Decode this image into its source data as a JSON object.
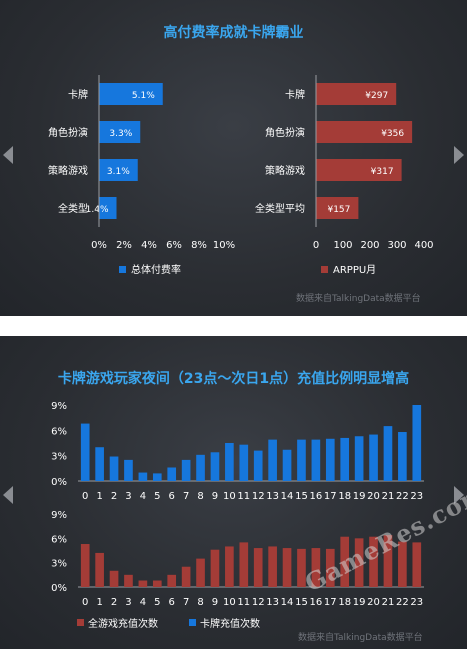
{
  "top_panel": {
    "title": "高付费率成就卡牌霸业",
    "source": "数据来自TalkingData数据平台"
  },
  "bottom_panel": {
    "title": "卡牌游戏玩家夜间（23点～次日1点）充值比例明显增高",
    "source": "数据来自TalkingData数据平台"
  },
  "site_watermark": "GameRes.com",
  "colors": {
    "blue": "#1677dd",
    "red": "#a43c37",
    "title": "#3aa6ee",
    "text": "#ffffff"
  },
  "chart_data": [
    {
      "type": "bar",
      "orientation": "horizontal",
      "categories": [
        "卡牌",
        "角色扮演",
        "策略游戏",
        "全类型"
      ],
      "values": [
        5.1,
        3.3,
        3.1,
        1.4
      ],
      "value_labels": [
        "5.1%",
        "3.3%",
        "3.1%",
        "1.4%"
      ],
      "xlim": [
        0,
        10
      ],
      "ticks": [
        "0%",
        "2%",
        "4%",
        "6%",
        "8%",
        "10%"
      ],
      "legend": "总体付费率",
      "color": "#1677dd"
    },
    {
      "type": "bar",
      "orientation": "horizontal",
      "categories": [
        "卡牌",
        "角色扮演",
        "策略游戏",
        "全类型平均"
      ],
      "values": [
        297,
        356,
        317,
        157
      ],
      "value_labels": [
        "¥297",
        "¥356",
        "¥317",
        "¥157"
      ],
      "xlim": [
        0,
        400
      ],
      "ticks": [
        "0",
        "100",
        "200",
        "300",
        "400"
      ],
      "legend": "ARPPU月",
      "color": "#a43c37"
    },
    {
      "type": "bar",
      "categories": [
        "0",
        "1",
        "2",
        "3",
        "4",
        "5",
        "6",
        "7",
        "8",
        "9",
        "10",
        "11",
        "12",
        "13",
        "14",
        "15",
        "16",
        "17",
        "18",
        "19",
        "20",
        "21",
        "22",
        "23"
      ],
      "values": [
        6.8,
        4.0,
        2.9,
        2.5,
        1.0,
        0.9,
        1.6,
        2.5,
        3.1,
        3.4,
        4.5,
        4.3,
        3.6,
        4.9,
        3.7,
        4.9,
        4.9,
        5.0,
        5.1,
        5.3,
        5.5,
        6.5,
        5.8,
        9.0
      ],
      "ylim": [
        0,
        9
      ],
      "yticks": [
        "0%",
        "3%",
        "6%",
        "9%"
      ],
      "series_name": "卡牌充值次数",
      "color": "#1677dd"
    },
    {
      "type": "bar",
      "categories": [
        "0",
        "1",
        "2",
        "3",
        "4",
        "5",
        "6",
        "7",
        "8",
        "9",
        "10",
        "11",
        "12",
        "13",
        "14",
        "15",
        "16",
        "17",
        "18",
        "19",
        "20",
        "21",
        "22",
        "23"
      ],
      "values": [
        5.3,
        4.2,
        2.0,
        1.5,
        0.8,
        0.8,
        1.5,
        2.5,
        3.5,
        4.6,
        5.0,
        5.5,
        4.8,
        5.0,
        4.8,
        4.7,
        4.8,
        4.7,
        6.2,
        6.0,
        6.2,
        6.4,
        5.6,
        5.5
      ],
      "ylim": [
        0,
        9
      ],
      "yticks": [
        "0%",
        "3%",
        "6%",
        "9%"
      ],
      "series_name": "全游戏充值次数",
      "color": "#a43c37"
    }
  ]
}
